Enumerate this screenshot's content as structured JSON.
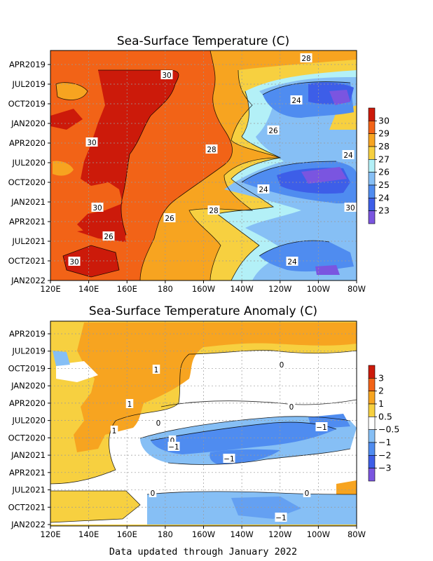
{
  "footer": "Data updated through January 2022",
  "chart_data": [
    {
      "type": "heatmap",
      "title": "Sea-Surface Temperature (C)",
      "xlabel": "",
      "ylabel": "",
      "x_ticks": [
        "120E",
        "140E",
        "160E",
        "180",
        "160W",
        "140W",
        "120W",
        "100W",
        "80W"
      ],
      "y_ticks": [
        "APR2019",
        "JUL2019",
        "OCT2019",
        "JAN2020",
        "APR2020",
        "JUL2020",
        "OCT2020",
        "JAN2021",
        "APR2021",
        "JUL2021",
        "OCT2021",
        "JAN2022"
      ],
      "xlim": [
        "120E",
        "80W"
      ],
      "ylim": [
        "JAN2022",
        "FEB2019"
      ],
      "colorbar": {
        "levels": [
          30,
          29,
          28,
          27,
          26,
          25,
          24,
          23
        ],
        "colors": [
          "#cc1a0a",
          "#f26317",
          "#f7a420",
          "#f7d040",
          "#b3f0f7",
          "#86bff5",
          "#4f8cf0",
          "#3d5ee8",
          "#7a55e0"
        ]
      },
      "contour_labels": [
        "28",
        "30",
        "24",
        "26",
        "30",
        "28",
        "24",
        "24",
        "30",
        "28",
        "26",
        "26",
        "30",
        "24",
        "30"
      ],
      "grid": true
    },
    {
      "type": "heatmap",
      "title": "Sea-Surface Temperature Anomaly (C)",
      "xlabel": "",
      "ylabel": "",
      "x_ticks": [
        "120E",
        "140E",
        "160E",
        "180",
        "160W",
        "140W",
        "120W",
        "100W",
        "80W"
      ],
      "y_ticks": [
        "APR2019",
        "JUL2019",
        "OCT2019",
        "JAN2020",
        "APR2020",
        "JUL2020",
        "OCT2020",
        "JAN2021",
        "APR2021",
        "JUL2021",
        "OCT2021",
        "JAN2022"
      ],
      "xlim": [
        "120E",
        "80W"
      ],
      "ylim": [
        "JAN2022",
        "FEB2019"
      ],
      "colorbar": {
        "levels": [
          "3",
          "2",
          "1",
          "0.5",
          "−0.5",
          "−1",
          "−2",
          "−3"
        ],
        "colors": [
          "#cc1a0a",
          "#f26317",
          "#f7a420",
          "#f7d040",
          "#ffffff",
          "#86bff5",
          "#4f8cf0",
          "#3d5ee8",
          "#7a55e0"
        ]
      },
      "contour_labels": [
        "1",
        "0",
        "1",
        "0",
        "0",
        "1",
        "0",
        "−1",
        "−1",
        "−1",
        "0",
        "0",
        "−1"
      ],
      "grid": true
    }
  ]
}
